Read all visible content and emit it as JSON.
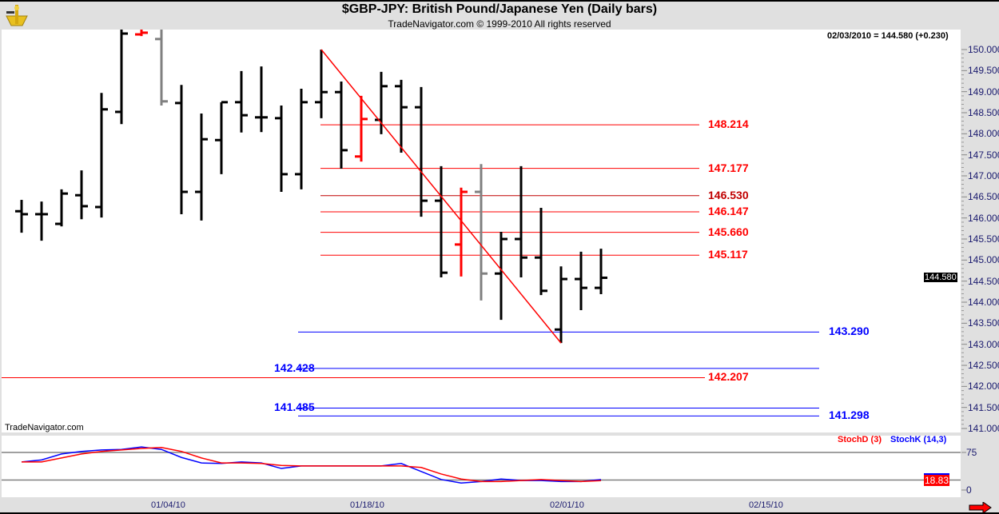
{
  "header": {
    "title": "$GBP-JPY:  British Pound/Japanese Yen  (Daily bars)",
    "subtitle": "TradeNavigator.com © 1999-2010 All rights reserved",
    "logo": "sextant-logo"
  },
  "info": "02/03/2010 = 144.580 (+0.230)",
  "watermark": "TradeNavigator.com",
  "current_price_tag": "144.580",
  "chart_data": [
    {
      "type": "ohlc",
      "title": "$GBP-JPY:  British Pound/Japanese Yen  (Daily bars)",
      "ylim": [
        141.0,
        150.5
      ],
      "y_ticks": [
        "150.000",
        "149.500",
        "149.000",
        "148.500",
        "148.000",
        "147.500",
        "147.000",
        "146.500",
        "146.000",
        "145.500",
        "145.000",
        "144.500",
        "144.000",
        "143.500",
        "143.000",
        "142.500",
        "142.000",
        "141.500",
        "141.000"
      ],
      "x_ticks": [
        "01/04/10",
        "01/18/10",
        "02/01/10",
        "02/15/10"
      ],
      "bars": [
        {
          "o": 146.16,
          "h": 146.43,
          "l": 145.65,
          "c": 146.09,
          "color": "#000000"
        },
        {
          "o": 146.09,
          "h": 146.39,
          "l": 145.46,
          "c": 146.09,
          "color": "#000000"
        },
        {
          "o": 145.86,
          "h": 146.68,
          "l": 145.8,
          "c": 146.58,
          "color": "#000000"
        },
        {
          "o": 146.54,
          "h": 147.13,
          "l": 145.97,
          "c": 146.28,
          "color": "#000000"
        },
        {
          "o": 146.26,
          "h": 148.97,
          "l": 146.01,
          "c": 148.58,
          "color": "#000000"
        },
        {
          "o": 148.52,
          "h": 150.5,
          "l": 148.23,
          "c": 150.38,
          "color": "#000000"
        },
        {
          "o": 150.36,
          "h": 150.49,
          "l": 150.32,
          "c": 150.4,
          "color": "#ff0000"
        },
        {
          "o": 150.25,
          "h": 150.5,
          "l": 148.67,
          "c": 148.77,
          "color": "#808080"
        },
        {
          "o": 148.73,
          "h": 149.16,
          "l": 146.09,
          "c": 146.62,
          "color": "#000000"
        },
        {
          "o": 146.62,
          "h": 148.48,
          "l": 145.94,
          "c": 147.87,
          "color": "#000000"
        },
        {
          "o": 147.85,
          "h": 148.75,
          "l": 147.04,
          "c": 148.75,
          "color": "#000000"
        },
        {
          "o": 148.75,
          "h": 149.49,
          "l": 148.03,
          "c": 148.44,
          "color": "#000000"
        },
        {
          "o": 148.39,
          "h": 149.6,
          "l": 148.04,
          "c": 148.39,
          "color": "#000000"
        },
        {
          "o": 148.37,
          "h": 148.67,
          "l": 146.62,
          "c": 147.04,
          "color": "#000000"
        },
        {
          "o": 147.04,
          "h": 149.07,
          "l": 146.68,
          "c": 148.75,
          "color": "#000000"
        },
        {
          "o": 148.75,
          "h": 150.0,
          "l": 148.37,
          "c": 148.99,
          "color": "#000000"
        },
        {
          "o": 148.99,
          "h": 149.24,
          "l": 147.17,
          "c": 147.61,
          "color": "#000000"
        },
        {
          "o": 147.46,
          "h": 148.9,
          "l": 147.34,
          "c": 148.35,
          "color": "#ff0000"
        },
        {
          "o": 148.33,
          "h": 149.47,
          "l": 147.99,
          "c": 149.13,
          "color": "#000000"
        },
        {
          "o": 149.13,
          "h": 149.28,
          "l": 147.55,
          "c": 148.63,
          "color": "#000000"
        },
        {
          "o": 148.63,
          "h": 149.11,
          "l": 146.03,
          "c": 146.41,
          "color": "#000000"
        },
        {
          "o": 146.41,
          "h": 147.23,
          "l": 144.59,
          "c": 144.7,
          "color": "#000000"
        },
        {
          "o": 145.37,
          "h": 146.72,
          "l": 144.61,
          "c": 146.62,
          "color": "#ff0000"
        },
        {
          "o": 146.62,
          "h": 147.28,
          "l": 144.04,
          "c": 144.68,
          "color": "#808080"
        },
        {
          "o": 144.68,
          "h": 145.67,
          "l": 143.58,
          "c": 145.5,
          "color": "#000000"
        },
        {
          "o": 145.5,
          "h": 147.23,
          "l": 144.59,
          "c": 145.06,
          "color": "#000000"
        },
        {
          "o": 145.06,
          "h": 146.24,
          "l": 144.17,
          "c": 144.27,
          "color": "#000000"
        },
        {
          "o": 143.35,
          "h": 144.85,
          "l": 143.03,
          "c": 144.55,
          "color": "#000000"
        },
        {
          "o": 144.55,
          "h": 145.2,
          "l": 143.81,
          "c": 144.34,
          "color": "#000000"
        },
        {
          "o": 144.34,
          "h": 145.27,
          "l": 144.19,
          "c": 144.58,
          "color": "#000000"
        }
      ],
      "trendline": {
        "from": {
          "bar": 15,
          "price": 150.0
        },
        "to": {
          "bar": 27,
          "price": 143.03
        },
        "color": "#ff0000"
      },
      "levels": [
        {
          "label": "148.214",
          "value": 148.214,
          "color": "#ff0000",
          "group": "retrace"
        },
        {
          "label": "147.177",
          "value": 147.177,
          "color": "#ff0000",
          "group": "retrace"
        },
        {
          "label": "146.530",
          "value": 146.53,
          "color": "#c00000",
          "group": "retrace"
        },
        {
          "label": "146.147",
          "value": 146.147,
          "color": "#ff0000",
          "group": "retrace"
        },
        {
          "label": "145.660",
          "value": 145.66,
          "color": "#ff0000",
          "group": "retrace"
        },
        {
          "label": "145.117",
          "value": 145.117,
          "color": "#ff0000",
          "group": "retrace"
        },
        {
          "label": "143.290",
          "value": 143.29,
          "color": "#0000ff",
          "group": "blue-right"
        },
        {
          "label": "142.428",
          "value": 142.428,
          "color": "#0000ff",
          "group": "blue-left"
        },
        {
          "label": "142.207",
          "value": 142.207,
          "color": "#ff0000",
          "group": "full"
        },
        {
          "label": "141.485",
          "value": 141.485,
          "color": "#0000ff",
          "group": "blue-left"
        },
        {
          "label": "141.298",
          "value": 141.298,
          "color": "#0000ff",
          "group": "blue-right"
        }
      ]
    },
    {
      "type": "line",
      "ylim": [
        0,
        100
      ],
      "y_ticks": [
        "75",
        "0"
      ],
      "guides": [
        75,
        20
      ],
      "last_value": "18.83",
      "series": [
        {
          "name": "StochD (3)",
          "color": "#ff0000",
          "values": [
            56,
            56,
            64,
            72,
            77,
            80,
            83,
            85,
            77,
            64,
            54,
            54,
            53,
            49,
            48,
            48,
            48,
            48,
            48,
            48,
            45,
            32,
            22,
            17,
            17,
            19,
            21,
            19,
            17,
            18.83
          ]
        },
        {
          "name": "StochK (14,3)",
          "color": "#0000ff",
          "values": [
            56,
            60,
            72,
            77,
            80,
            81,
            86,
            81,
            65,
            54,
            53,
            56,
            54,
            43,
            48,
            48,
            48,
            48,
            48,
            53,
            37,
            21,
            14,
            17,
            22,
            19,
            19,
            17,
            17,
            21
          ]
        }
      ]
    }
  ]
}
